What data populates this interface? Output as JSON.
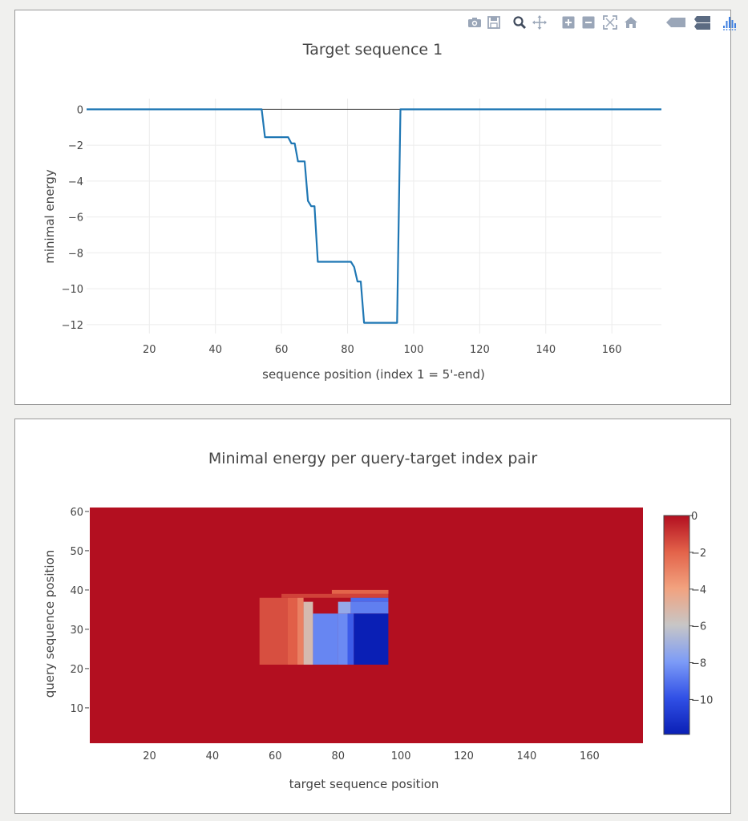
{
  "modebar": {
    "buttons": [
      {
        "name": "camera-icon",
        "tip": "Download plot as a png"
      },
      {
        "name": "save-icon",
        "tip": "Save and edit plot in cloud"
      },
      {
        "name": "zoom-icon",
        "tip": "Zoom"
      },
      {
        "name": "pan-icon",
        "tip": "Pan"
      },
      {
        "name": "zoom-in-icon",
        "tip": "Zoom in"
      },
      {
        "name": "zoom-out-icon",
        "tip": "Zoom out"
      },
      {
        "name": "autoscale-icon",
        "tip": "Autoscale"
      },
      {
        "name": "home-icon",
        "tip": "Reset axes"
      },
      {
        "name": "hover-closest-icon",
        "tip": "Show closest data on hover"
      },
      {
        "name": "hover-compare-icon",
        "tip": "Compare data on hover"
      },
      {
        "name": "plotly-logo-icon",
        "tip": "Produced with Plotly"
      }
    ]
  },
  "line_plot": {
    "title": "Target sequence 1",
    "xlabel": "sequence position (index 1 = 5'-end)",
    "ylabel": "minimal energy"
  },
  "heat_plot": {
    "title": "Minimal energy per query-target index pair",
    "xlabel": "target sequence position",
    "ylabel": "query sequence position"
  },
  "colors": {
    "line": "#1f77b4",
    "colorscale": [
      "#0a1fb5",
      "#3150e6",
      "#7d9cf7",
      "#c7c6c6",
      "#f2a27f",
      "#e3634a",
      "#b30f20"
    ]
  },
  "chart_data": [
    {
      "type": "line",
      "title": "Target sequence 1",
      "xlabel": "sequence position (index 1 = 5'-end)",
      "ylabel": "minimal energy",
      "xlim": [
        1,
        175
      ],
      "ylim": [
        -12.5,
        0.6
      ],
      "xticks": [
        20,
        40,
        60,
        80,
        100,
        120,
        140,
        160
      ],
      "yticks": [
        0,
        -2,
        -4,
        -6,
        -8,
        -10,
        -12
      ],
      "series": [
        {
          "x": [
            1,
            54,
            55,
            62,
            63,
            64,
            65,
            67,
            68,
            69,
            70,
            71,
            72,
            81,
            82,
            83,
            84,
            85,
            95,
            96,
            175
          ],
          "y": [
            0,
            0,
            -1.55,
            -1.55,
            -1.9,
            -1.9,
            -2.9,
            -2.9,
            -5.1,
            -5.4,
            -5.4,
            -8.5,
            -8.5,
            -8.5,
            -8.8,
            -9.6,
            -9.6,
            -11.9,
            -11.9,
            0,
            0
          ]
        }
      ]
    },
    {
      "type": "heatmap",
      "title": "Minimal energy per query-target index pair",
      "xlabel": "target sequence position",
      "ylabel": "query sequence position",
      "xlim": [
        1,
        177
      ],
      "ylim": [
        1,
        61
      ],
      "xticks": [
        20,
        40,
        60,
        80,
        100,
        120,
        140,
        160
      ],
      "yticks": [
        10,
        20,
        30,
        40,
        50,
        60
      ],
      "background_value": 0,
      "colorbar": {
        "range": [
          -11.9,
          0
        ],
        "ticks": [
          0,
          -2,
          -4,
          -6,
          -8,
          -10
        ]
      },
      "regions": [
        {
          "x": [
            55,
            64
          ],
          "y": [
            21,
            38
          ],
          "value": -1.5
        },
        {
          "x": [
            62,
            96
          ],
          "y": [
            38,
            39
          ],
          "value": -1.2
        },
        {
          "x": [
            64,
            67
          ],
          "y": [
            21,
            38
          ],
          "value": -1.9
        },
        {
          "x": [
            67,
            69
          ],
          "y": [
            21,
            38
          ],
          "value": -2.9
        },
        {
          "x": [
            69,
            72
          ],
          "y": [
            21,
            37
          ],
          "value": -5.3
        },
        {
          "x": [
            72,
            80
          ],
          "y": [
            21,
            34
          ],
          "value": -8.5
        },
        {
          "x": [
            80,
            83
          ],
          "y": [
            21,
            34
          ],
          "value": -8.4
        },
        {
          "x": [
            80,
            84
          ],
          "y": [
            34,
            37
          ],
          "value": -7.3
        },
        {
          "x": [
            83,
            85
          ],
          "y": [
            21,
            34
          ],
          "value": -9.6
        },
        {
          "x": [
            84,
            96
          ],
          "y": [
            34,
            37
          ],
          "value": -8.7
        },
        {
          "x": [
            84,
            96
          ],
          "y": [
            37,
            38
          ],
          "value": -9.2
        },
        {
          "x": [
            85,
            96
          ],
          "y": [
            21,
            34
          ],
          "value": -11.9
        },
        {
          "x": [
            78,
            96
          ],
          "y": [
            39,
            40
          ],
          "value": -2.0
        }
      ]
    }
  ]
}
